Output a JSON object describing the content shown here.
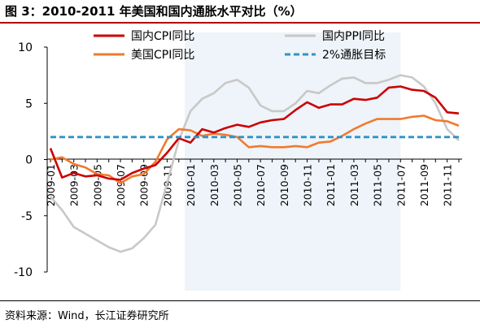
{
  "title": "图 3：2010-2011 年美国和国内通胀水平对比（%）",
  "source": "资料来源：Wind，长江证券研究所",
  "colors": {
    "china_cpi": "#cc0000",
    "china_ppi": "#c8c8c8",
    "us_cpi": "#f07a2e",
    "target": "#2e93c9",
    "shade": "#eef4f9",
    "title_rule": "#b40000"
  },
  "chart_data": {
    "type": "line",
    "ylim": [
      -10,
      10
    ],
    "yticks": [
      -10,
      -5,
      0,
      5,
      10
    ],
    "xlabels": [
      "2009-01",
      "2009-03",
      "2009-05",
      "2009-07",
      "2009-09",
      "2009-11",
      "2010-01",
      "2010-03",
      "2010-05",
      "2010-07",
      "2010-09",
      "2010-11",
      "2011-01",
      "2011-03",
      "2011-05",
      "2011-07",
      "2011-09",
      "2011-11"
    ],
    "x": [
      "2009-01",
      "2009-02",
      "2009-03",
      "2009-04",
      "2009-05",
      "2009-06",
      "2009-07",
      "2009-08",
      "2009-09",
      "2009-10",
      "2009-11",
      "2009-12",
      "2010-01",
      "2010-02",
      "2010-03",
      "2010-04",
      "2010-05",
      "2010-06",
      "2010-07",
      "2010-08",
      "2010-09",
      "2010-10",
      "2010-11",
      "2010-12",
      "2011-01",
      "2011-02",
      "2011-03",
      "2011-04",
      "2011-05",
      "2011-06",
      "2011-07",
      "2011-08",
      "2011-09",
      "2011-10",
      "2011-11",
      "2011-12"
    ],
    "shaded_range": [
      "2010-01",
      "2011-07"
    ],
    "legend": [
      {
        "label": "国内CPI同比",
        "series": "china_cpi"
      },
      {
        "label": "国内PPI同比",
        "series": "china_ppi"
      },
      {
        "label": "美国CPI同比",
        "series": "us_cpi"
      },
      {
        "label": "2%通胀目标",
        "series": "target"
      }
    ],
    "series": [
      {
        "key": "china_cpi",
        "style": "solid",
        "values": [
          1.0,
          -1.6,
          -1.2,
          -1.5,
          -1.4,
          -1.7,
          -1.8,
          -1.2,
          -0.8,
          -0.5,
          0.6,
          1.9,
          1.5,
          2.7,
          2.4,
          2.8,
          3.1,
          2.9,
          3.3,
          3.5,
          3.6,
          4.4,
          5.1,
          4.6,
          4.9,
          4.9,
          5.4,
          5.3,
          5.5,
          6.4,
          6.5,
          6.2,
          6.1,
          5.5,
          4.2,
          4.1
        ]
      },
      {
        "key": "china_ppi",
        "style": "solid",
        "values": [
          -3.3,
          -4.5,
          -6.0,
          -6.6,
          -7.2,
          -7.8,
          -8.2,
          -7.9,
          -7.0,
          -5.8,
          -2.1,
          1.7,
          4.3,
          5.4,
          5.9,
          6.8,
          7.1,
          6.4,
          4.8,
          4.3,
          4.3,
          5.0,
          6.1,
          5.9,
          6.6,
          7.2,
          7.3,
          6.8,
          6.8,
          7.1,
          7.5,
          7.3,
          6.5,
          5.0,
          2.7,
          1.7
        ]
      },
      {
        "key": "us_cpi",
        "style": "solid",
        "values": [
          0.0,
          0.2,
          -0.4,
          -0.7,
          -1.3,
          -1.4,
          -2.1,
          -1.5,
          -1.3,
          -0.2,
          1.8,
          2.7,
          2.6,
          2.1,
          2.3,
          2.2,
          2.0,
          1.1,
          1.2,
          1.1,
          1.1,
          1.2,
          1.1,
          1.5,
          1.6,
          2.1,
          2.7,
          3.2,
          3.6,
          3.6,
          3.6,
          3.8,
          3.9,
          3.5,
          3.4,
          3.0
        ]
      },
      {
        "key": "target",
        "style": "dashed",
        "values": [
          2,
          2,
          2,
          2,
          2,
          2,
          2,
          2,
          2,
          2,
          2,
          2,
          2,
          2,
          2,
          2,
          2,
          2,
          2,
          2,
          2,
          2,
          2,
          2,
          2,
          2,
          2,
          2,
          2,
          2,
          2,
          2,
          2,
          2,
          2,
          2
        ]
      }
    ]
  }
}
